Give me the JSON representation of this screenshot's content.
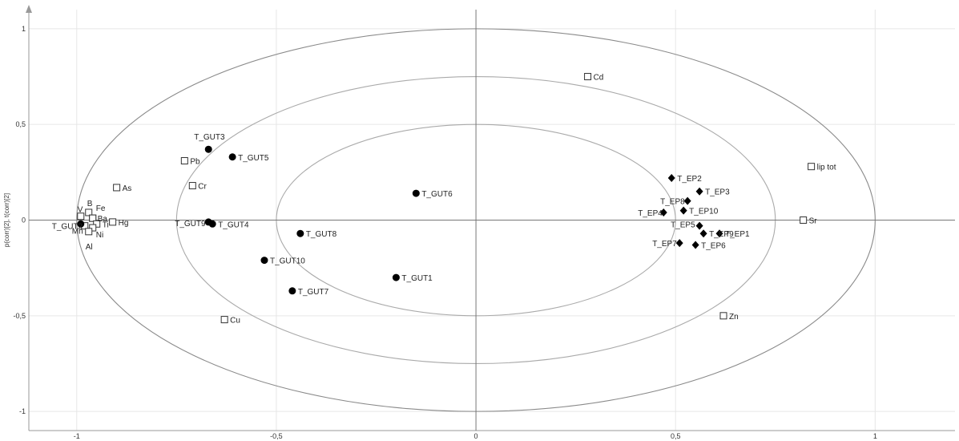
{
  "chart_data": {
    "type": "scatter",
    "title": "",
    "xlabel": "",
    "ylabel": "p(corr)[2], t(corr)[2]",
    "xlim": [
      -1.12,
      1.2
    ],
    "ylim": [
      -1.1,
      1.1
    ],
    "grid": true,
    "x_ticks": [
      {
        "value": -1,
        "label": "-1"
      },
      {
        "value": -0.5,
        "label": "-0,5"
      },
      {
        "value": 0,
        "label": "0"
      },
      {
        "value": 0.5,
        "label": "0,5"
      },
      {
        "value": 1,
        "label": "1"
      }
    ],
    "y_ticks": [
      {
        "value": 1,
        "label": "1"
      },
      {
        "value": 0.5,
        "label": "0,5"
      },
      {
        "value": 0,
        "label": "0"
      },
      {
        "value": -0.5,
        "label": "-0,5"
      },
      {
        "value": -1,
        "label": "-1"
      }
    ],
    "ellipses": [
      {
        "rx": 1.0,
        "ry": 1.0
      },
      {
        "rx": 0.75,
        "ry": 0.75
      },
      {
        "rx": 0.5,
        "ry": 0.5
      }
    ],
    "series": [
      {
        "marker": "square",
        "color": "#333333",
        "points": [
          {
            "label": "Cd",
            "x": 0.28,
            "y": 0.75
          },
          {
            "label": "lip tot",
            "x": 0.84,
            "y": 0.28
          },
          {
            "label": "Sr",
            "x": 0.82,
            "y": 0.0
          },
          {
            "label": "Zn",
            "x": 0.62,
            "y": -0.5
          },
          {
            "label": "Pb",
            "x": -0.73,
            "y": 0.31
          },
          {
            "label": "Cr",
            "x": -0.71,
            "y": 0.18
          },
          {
            "label": "As",
            "x": -0.9,
            "y": 0.17
          },
          {
            "label": "Cu",
            "x": -0.63,
            "y": -0.52
          },
          {
            "label": "Hg",
            "x": -0.91,
            "y": -0.01
          },
          {
            "label": "V",
            "x": -0.99,
            "y": 0.02
          },
          {
            "label": "B",
            "x": -0.97,
            "y": 0.04
          },
          {
            "label": "Fe",
            "x": -0.96,
            "y": 0.01
          },
          {
            "label": "Ba",
            "x": -0.96,
            "y": 0.01
          },
          {
            "label": "Ti",
            "x": -0.95,
            "y": -0.02
          },
          {
            "label": "Mn",
            "x": -0.98,
            "y": -0.03
          },
          {
            "label": "Ni",
            "x": -0.96,
            "y": -0.04
          },
          {
            "label": "Al",
            "x": -0.97,
            "y": -0.06
          }
        ]
      },
      {
        "marker": "circle",
        "color": "#000000",
        "points": [
          {
            "label": "T_GUT3",
            "x": -0.67,
            "y": 0.37
          },
          {
            "label": "T_GUT5",
            "x": -0.61,
            "y": 0.33
          },
          {
            "label": "T_GUT6",
            "x": -0.15,
            "y": 0.14
          },
          {
            "label": "T_GUT9",
            "x": -0.67,
            "y": -0.01
          },
          {
            "label": "T_GUT4",
            "x": -0.66,
            "y": -0.02
          },
          {
            "label": "T_GUT8",
            "x": -0.44,
            "y": -0.07
          },
          {
            "label": "T_GUT10",
            "x": -0.53,
            "y": -0.21
          },
          {
            "label": "T_GUT7",
            "x": -0.46,
            "y": -0.37
          },
          {
            "label": "T_GUT1",
            "x": -0.2,
            "y": -0.3
          },
          {
            "label": "T_GUT2",
            "x": -0.99,
            "y": -0.02
          }
        ]
      },
      {
        "marker": "diamond",
        "color": "#000000",
        "points": [
          {
            "label": "T_EP2",
            "x": 0.49,
            "y": 0.22
          },
          {
            "label": "T_EP3",
            "x": 0.56,
            "y": 0.15
          },
          {
            "label": "T_EP8",
            "x": 0.53,
            "y": 0.1
          },
          {
            "label": "T_EP10",
            "x": 0.52,
            "y": 0.05
          },
          {
            "label": "T_EP4",
            "x": 0.47,
            "y": 0.04
          },
          {
            "label": "T_EP5",
            "x": 0.56,
            "y": -0.03
          },
          {
            "label": "T_EP9",
            "x": 0.57,
            "y": -0.07
          },
          {
            "label": "T_EP1",
            "x": 0.61,
            "y": -0.07
          },
          {
            "label": "T_EP7",
            "x": 0.51,
            "y": -0.12
          },
          {
            "label": "T_EP6",
            "x": 0.55,
            "y": -0.13
          }
        ]
      }
    ]
  }
}
